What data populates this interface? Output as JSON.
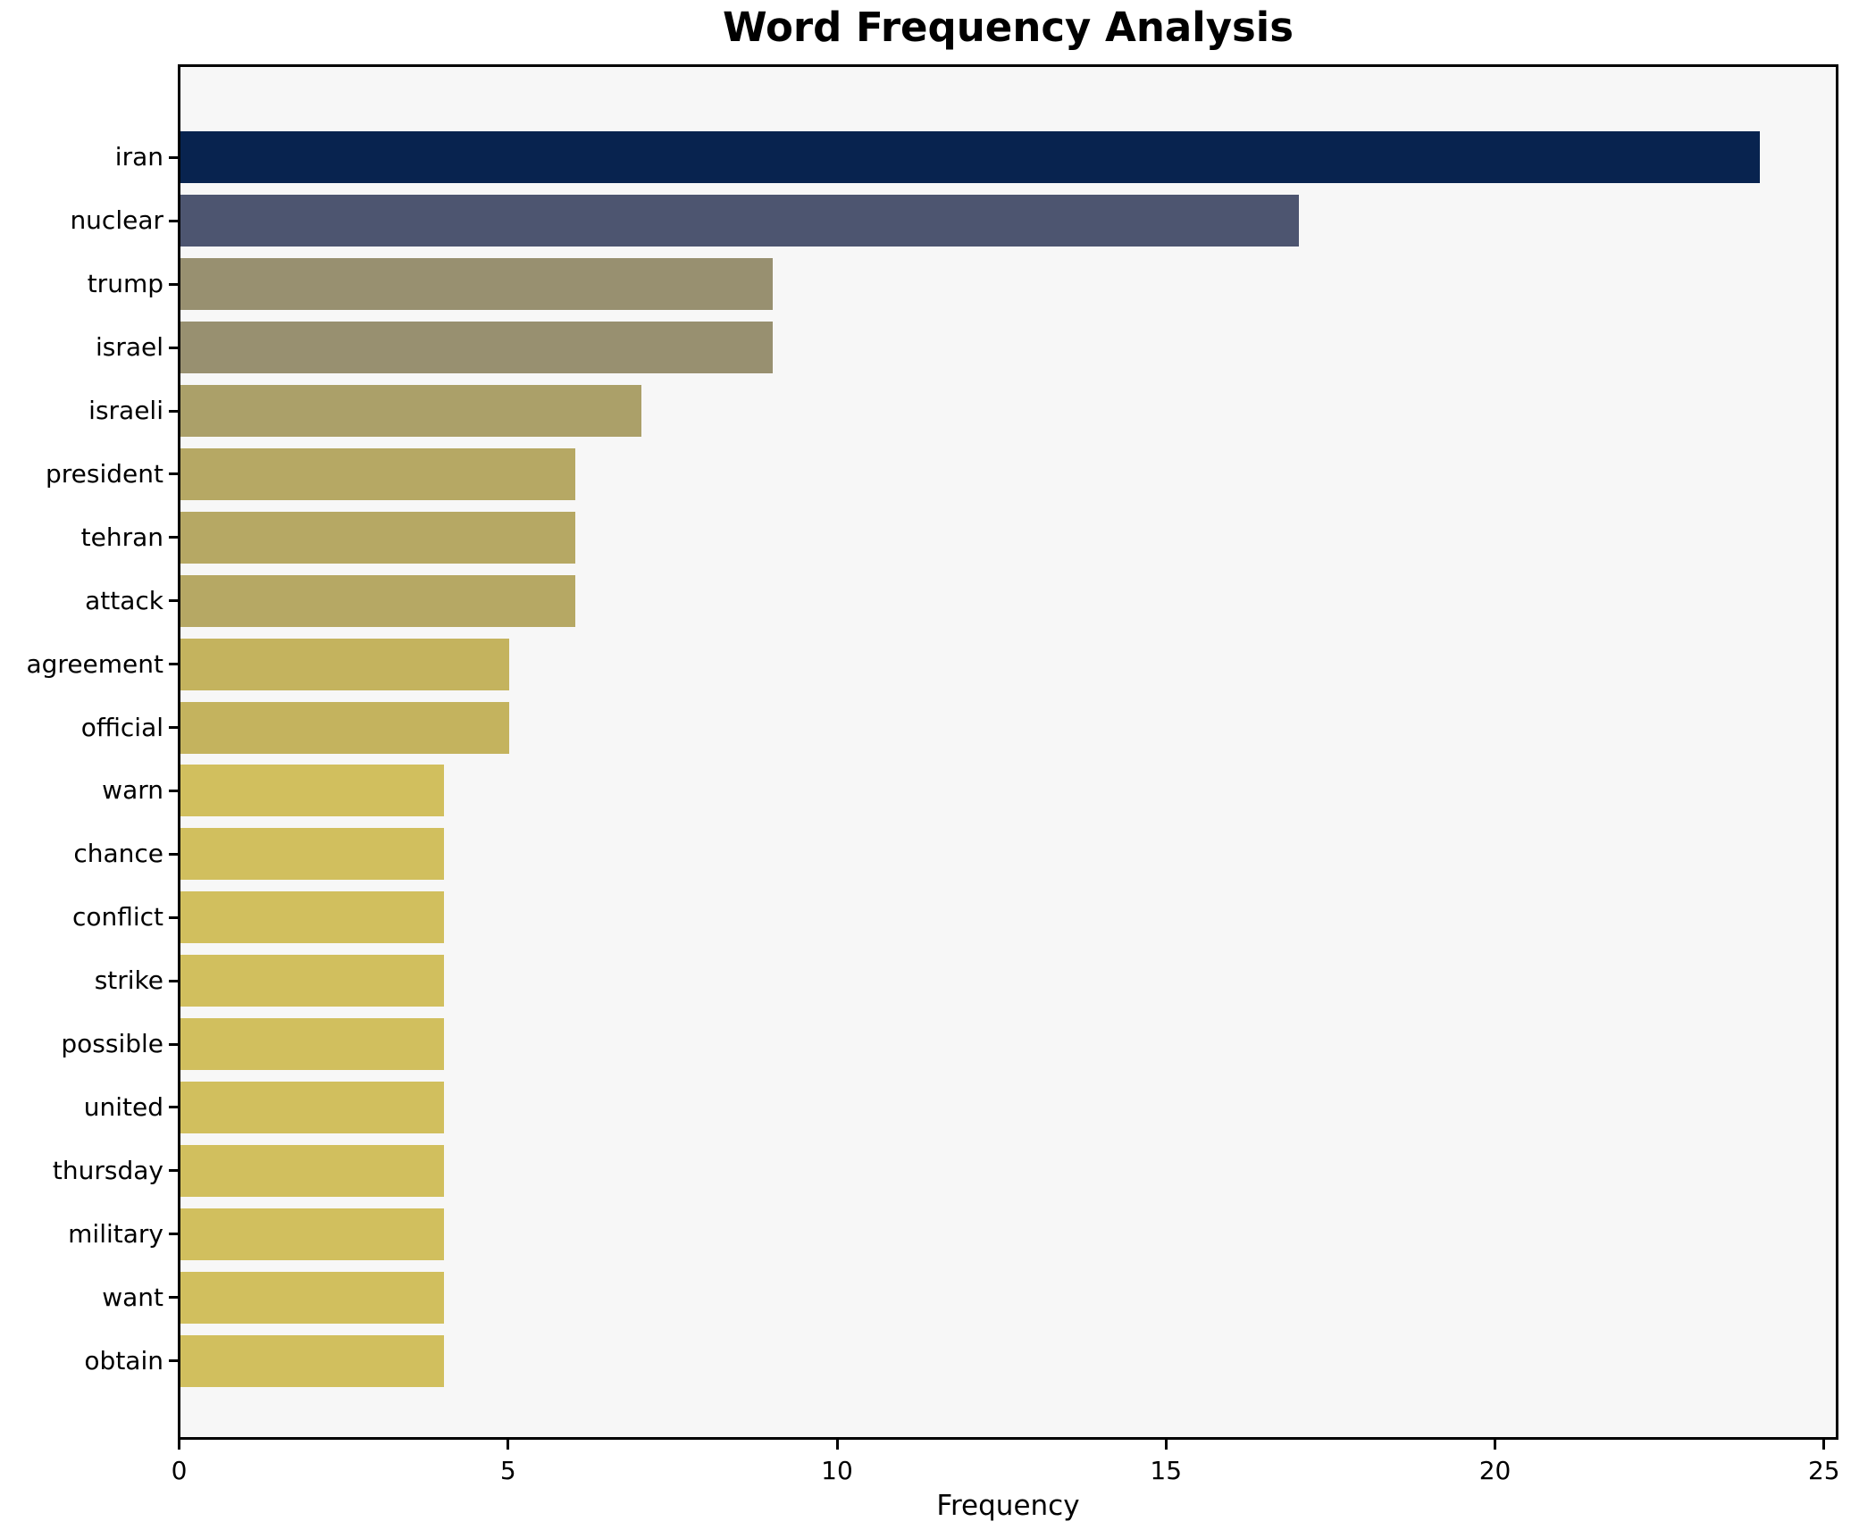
{
  "chart_data": {
    "type": "bar",
    "orientation": "horizontal",
    "title": "Word Frequency Analysis",
    "xlabel": "Frequency",
    "ylabel": "",
    "categories": [
      "iran",
      "nuclear",
      "trump",
      "israel",
      "israeli",
      "president",
      "tehran",
      "attack",
      "agreement",
      "official",
      "warn",
      "chance",
      "conflict",
      "strike",
      "possible",
      "united",
      "thursday",
      "military",
      "want",
      "obtain"
    ],
    "values": [
      24,
      17,
      9,
      9,
      7,
      6,
      6,
      6,
      5,
      5,
      4,
      4,
      4,
      4,
      4,
      4,
      4,
      4,
      4,
      4
    ],
    "bar_colors": [
      "#08234f",
      "#4d5570",
      "#989070",
      "#989070",
      "#aba069",
      "#b6a864",
      "#b6a864",
      "#b6a864",
      "#c4b35e",
      "#c4b35e",
      "#d1bf5e",
      "#d1bf5e",
      "#d1bf5e",
      "#d1bf5e",
      "#d1bf5e",
      "#d1bf5e",
      "#d1bf5e",
      "#d1bf5e",
      "#d1bf5e",
      "#d1bf5e"
    ],
    "xlim": [
      0,
      25.2
    ],
    "xticks": [
      0,
      5,
      10,
      15,
      20,
      25
    ],
    "grid": false,
    "legend_position": "none",
    "plot_background": "#f7f7f7",
    "figure_background": "#ffffff",
    "spine_color": "#000000"
  }
}
